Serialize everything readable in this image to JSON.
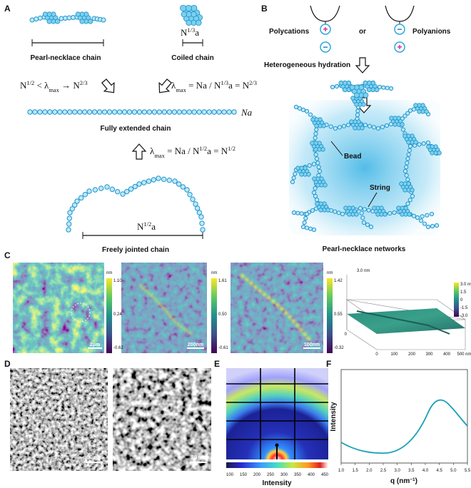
{
  "panel_a": {
    "letter": "A",
    "pearl_label": "Pearl-necklace chain",
    "coiled_label": "Coiled chain",
    "coiled_size": [
      {
        "t": "N"
      },
      {
        "t": "1/3",
        "pos": "sup"
      },
      {
        "t": "a"
      }
    ],
    "eq_left": [
      {
        "t": "N"
      },
      {
        "t": "1/2",
        "pos": "sup"
      },
      {
        "t": " < λ"
      },
      {
        "t": "max",
        "pos": "sub"
      },
      {
        "t": " → N"
      },
      {
        "t": "2/3",
        "pos": "sup"
      }
    ],
    "eq_right": [
      {
        "t": "λ"
      },
      {
        "t": "max",
        "pos": "sub"
      },
      {
        "t": " = Na / N"
      },
      {
        "t": "1/3",
        "pos": "sup"
      },
      {
        "t": "a = N"
      },
      {
        "t": "2/3",
        "pos": "sup"
      }
    ],
    "extended_size": "Na",
    "extended_label": "Fully extended chain",
    "eq_bottom": [
      {
        "t": "λ"
      },
      {
        "t": "max",
        "pos": "sub"
      },
      {
        "t": " = Na / N"
      },
      {
        "t": "1/2",
        "pos": "sup"
      },
      {
        "t": "a = N"
      },
      {
        "t": "1/2",
        "pos": "sup"
      }
    ],
    "jointed_size": [
      {
        "t": "N"
      },
      {
        "t": "1/2",
        "pos": "sup"
      },
      {
        "t": "a"
      }
    ],
    "jointed_label": "Freely jointed chain"
  },
  "panel_b": {
    "letter": "B",
    "cations": "Polycations",
    "or": "or",
    "anions": "Polyanions",
    "plus": "+",
    "minus": "−",
    "hydration": "Heterogeneous hydration",
    "bead": "Bead",
    "string": "String",
    "network_label": "Pearl-necklace networks"
  },
  "panel_c": {
    "letter": "C",
    "maps": [
      {
        "unit": "nm",
        "ticks": [
          "1.10",
          "0.24",
          "-0.62"
        ],
        "scale": "2μm"
      },
      {
        "unit": "nm",
        "ticks": [
          "1.61",
          "0.50",
          "-0.61"
        ],
        "scale": "200nm"
      },
      {
        "unit": "nm",
        "ticks": [
          "1.42",
          "0.55",
          "-0.32"
        ],
        "scale": "100nm"
      }
    ],
    "surface": {
      "z_title": "3.0 nm",
      "bar_ticks": [
        "3.0 nm",
        "1.5",
        "0",
        "-1.5",
        "-3.0"
      ],
      "x_ticks": [
        "0",
        "100",
        "200",
        "300",
        "400",
        "500 nm"
      ],
      "y_tick": "0"
    }
  },
  "panel_d": {
    "letter": "D",
    "scale_left": "50 nm",
    "scale_right": "20 nm"
  },
  "panel_e": {
    "letter": "E",
    "ticks": [
      "100",
      "150",
      "200",
      "250",
      "300",
      "350",
      "400",
      "450"
    ],
    "bar_title": "Intensity"
  },
  "panel_f": {
    "letter": "F",
    "y_title": "Intensity",
    "x_title": [
      {
        "t": "q"
      },
      {
        "t": " (nm"
      },
      {
        "t": "−1",
        "pos": "sup"
      },
      {
        "t": ")"
      }
    ],
    "x_ticks": [
      "1.0",
      "1.5",
      "2.0",
      "2.5",
      "3.0",
      "3.5",
      "4.0",
      "4.5",
      "5.0",
      "5.5"
    ]
  }
}
